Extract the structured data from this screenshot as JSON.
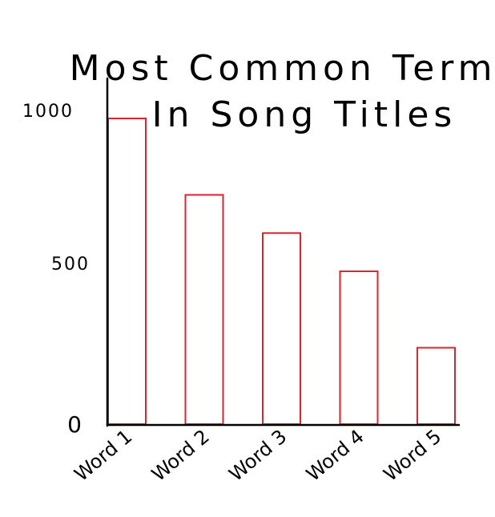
{
  "chart_data": {
    "type": "bar",
    "title_lines": [
      "Most Common Terms",
      "In Song Titles"
    ],
    "categories": [
      "Word 1",
      "Word 2",
      "Word 3",
      "Word 4",
      "Word 5"
    ],
    "values": [
      1000,
      750,
      625,
      500,
      250
    ],
    "y_ticks": [
      {
        "value": 0,
        "label": "0"
      },
      {
        "value": 500,
        "label": "500"
      },
      {
        "value": 1000,
        "label": "1000"
      }
    ],
    "ylim": [
      0,
      1000
    ],
    "xlabel": "",
    "ylabel": "",
    "grid": false,
    "bar_color": "#d7262e",
    "axis_color": "#000000"
  }
}
